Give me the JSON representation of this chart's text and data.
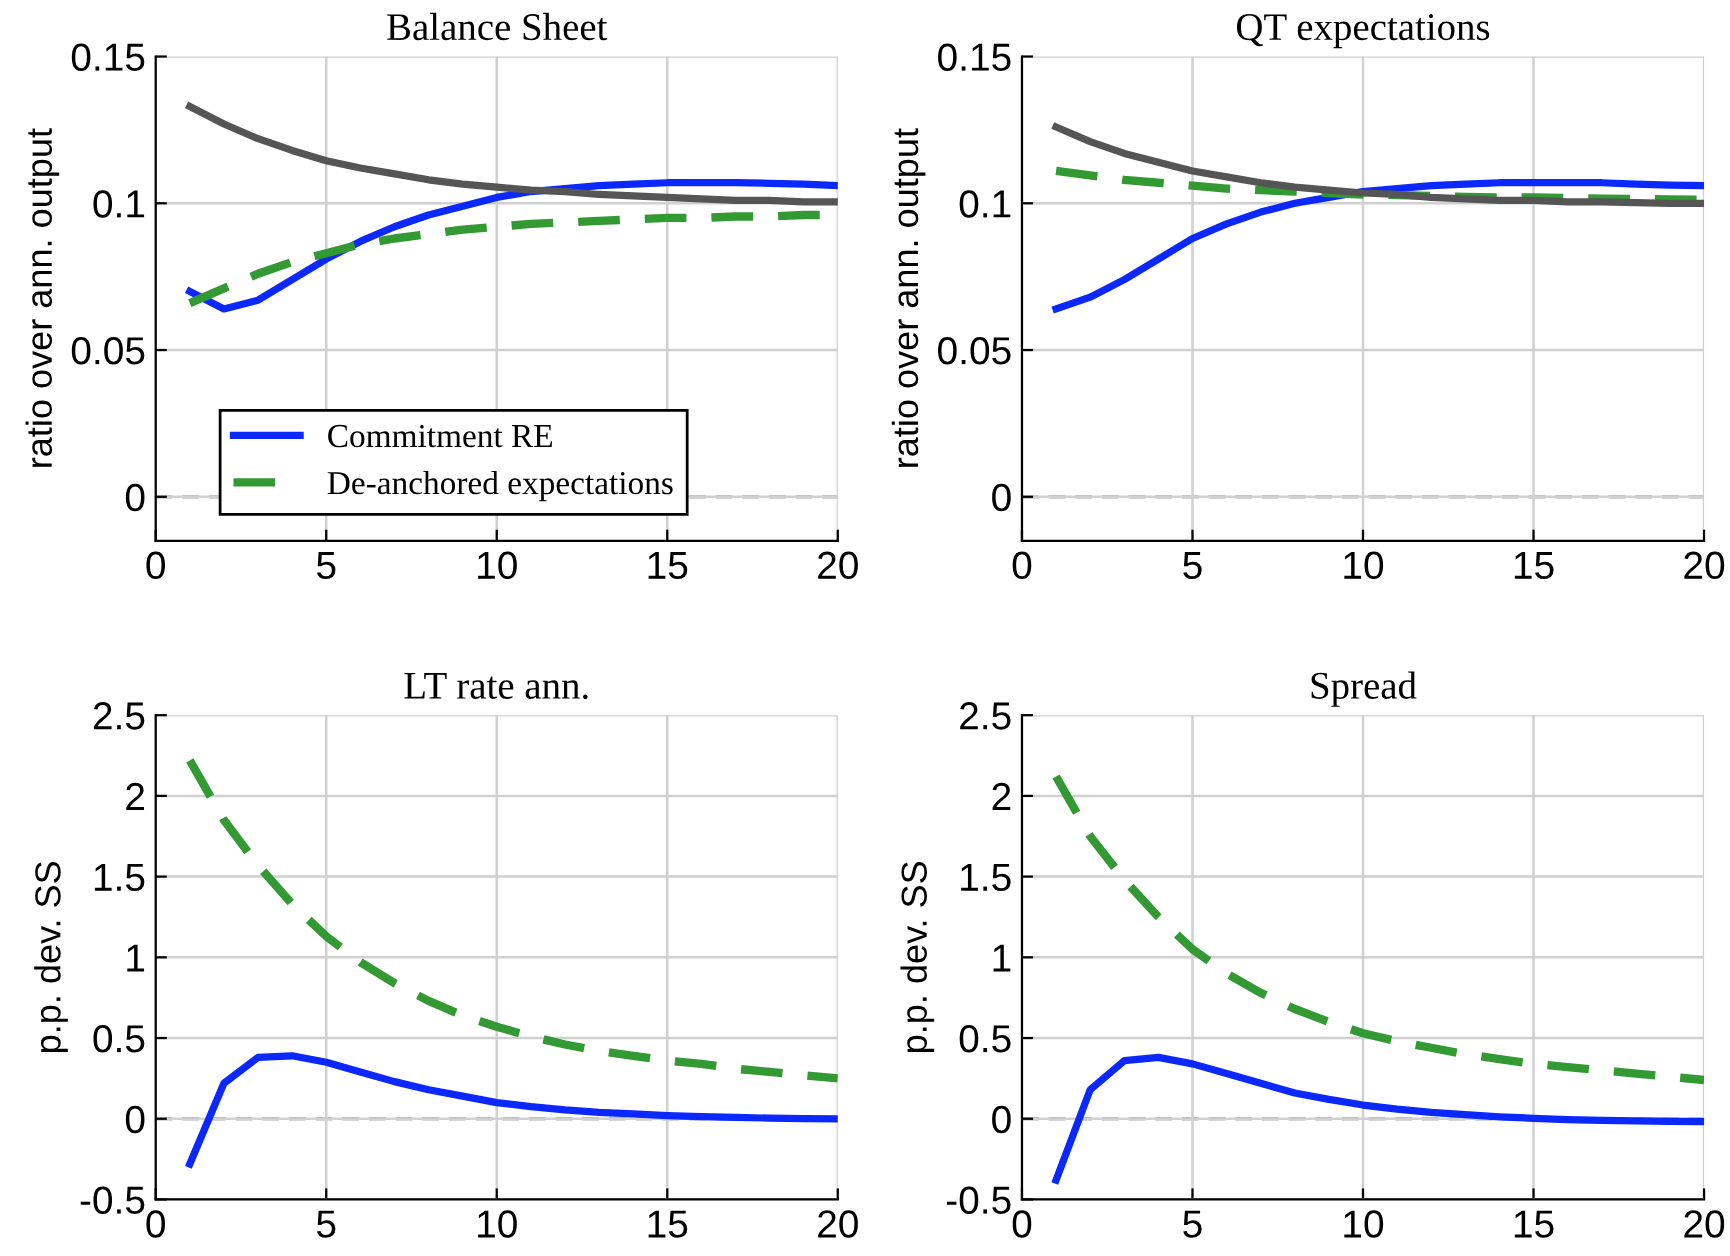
{
  "chart_data": [
    {
      "type": "line",
      "title": "Balance Sheet",
      "ylabel": "ratio over ann. output",
      "x": [
        1,
        2,
        3,
        4,
        5,
        6,
        7,
        8,
        9,
        10,
        11,
        12,
        13,
        14,
        15,
        16,
        17,
        18,
        19,
        20
      ],
      "xlim": [
        0,
        20
      ],
      "xticks": [
        0,
        5,
        10,
        15,
        20
      ],
      "ylim": [
        -0.015,
        0.15
      ],
      "yticks": [
        0,
        0.05,
        0.1,
        0.15
      ],
      "grid": true,
      "legend": "bottom left",
      "ref_lines": [
        {
          "axis": "y",
          "value": 0,
          "color": "#aaaaaa",
          "line_style": "dashed"
        }
      ],
      "series": [
        {
          "name": "Commitment RE",
          "color": "#0a28ff",
          "line_style": "solid",
          "values": [
            0.07,
            0.064,
            0.067,
            0.074,
            0.081,
            0.087,
            0.092,
            0.096,
            0.099,
            0.102,
            0.104,
            0.105,
            0.106,
            0.1065,
            0.107,
            0.107,
            0.107,
            0.1068,
            0.1065,
            0.106
          ]
        },
        {
          "name": "De-anchored expectations",
          "color": "#339933",
          "line_style": "dashed",
          "values": [
            0.066,
            0.071,
            0.076,
            0.08,
            0.083,
            0.086,
            0.088,
            0.0895,
            0.091,
            0.092,
            0.093,
            0.0935,
            0.094,
            0.0945,
            0.095,
            0.095,
            0.0955,
            0.0955,
            0.096,
            0.096
          ]
        },
        {
          "color": "#555555",
          "line_style": "solid",
          "values": [
            0.133,
            0.127,
            0.122,
            0.118,
            0.1145,
            0.112,
            0.11,
            0.108,
            0.1065,
            0.1055,
            0.1045,
            0.104,
            0.103,
            0.1025,
            0.102,
            0.1015,
            0.101,
            0.101,
            0.1005,
            0.1005
          ]
        }
      ]
    },
    {
      "type": "line",
      "title": "QT expectations",
      "ylabel": "ratio over ann. output",
      "x": [
        1,
        2,
        3,
        4,
        5,
        6,
        7,
        8,
        9,
        10,
        11,
        12,
        13,
        14,
        15,
        16,
        17,
        18,
        19,
        20
      ],
      "xlim": [
        0,
        20
      ],
      "xticks": [
        0,
        5,
        10,
        15,
        20
      ],
      "ylim": [
        -0.015,
        0.15
      ],
      "yticks": [
        0,
        0.05,
        0.1,
        0.15
      ],
      "grid": true,
      "ref_lines": [
        {
          "axis": "y",
          "value": 0,
          "color": "#aaaaaa",
          "line_style": "dashed"
        }
      ],
      "series": [
        {
          "color": "#0a28ff",
          "line_style": "solid",
          "values": [
            0.064,
            0.068,
            0.074,
            0.081,
            0.088,
            0.093,
            0.097,
            0.1,
            0.102,
            0.104,
            0.105,
            0.106,
            0.1065,
            0.107,
            0.107,
            0.107,
            0.107,
            0.1065,
            0.1062,
            0.106
          ]
        },
        {
          "color": "#339933",
          "line_style": "dashed",
          "values": [
            0.111,
            0.1095,
            0.108,
            0.107,
            0.106,
            0.105,
            0.1045,
            0.104,
            0.1035,
            0.103,
            0.1028,
            0.1025,
            0.1022,
            0.102,
            0.102,
            0.1018,
            0.1016,
            0.1015,
            0.1013,
            0.1012
          ]
        },
        {
          "color": "#555555",
          "line_style": "solid",
          "values": [
            0.126,
            0.121,
            0.117,
            0.114,
            0.111,
            0.109,
            0.107,
            0.1055,
            0.1045,
            0.1035,
            0.103,
            0.102,
            0.1015,
            0.101,
            0.101,
            0.1005,
            0.1005,
            0.1002,
            0.1,
            0.1
          ]
        }
      ]
    },
    {
      "type": "line",
      "title": "LT rate ann.",
      "ylabel": "p.p. dev. SS",
      "x": [
        1,
        2,
        3,
        4,
        5,
        6,
        7,
        8,
        9,
        10,
        11,
        12,
        13,
        14,
        15,
        16,
        17,
        18,
        19,
        20
      ],
      "xlim": [
        0,
        20
      ],
      "xticks": [
        0,
        5,
        10,
        15,
        20
      ],
      "ylim": [
        -0.5,
        2.5
      ],
      "yticks": [
        -0.5,
        0,
        0.5,
        1,
        1.5,
        2,
        2.5
      ],
      "grid": true,
      "ref_lines": [
        {
          "axis": "y",
          "value": 0,
          "color": "#aaaaaa",
          "line_style": "dashed"
        }
      ],
      "series": [
        {
          "color": "#0a28ff",
          "line_style": "solid",
          "values": [
            -0.28,
            0.22,
            0.38,
            0.39,
            0.35,
            0.29,
            0.23,
            0.18,
            0.14,
            0.1,
            0.075,
            0.055,
            0.04,
            0.03,
            0.02,
            0.013,
            0.008,
            0.004,
            0.001,
            -0.001
          ]
        },
        {
          "color": "#339933",
          "line_style": "dashed",
          "values": [
            2.22,
            1.85,
            1.57,
            1.33,
            1.13,
            0.97,
            0.84,
            0.73,
            0.64,
            0.57,
            0.51,
            0.46,
            0.42,
            0.39,
            0.36,
            0.34,
            0.31,
            0.29,
            0.27,
            0.25
          ]
        }
      ]
    },
    {
      "type": "line",
      "title": "Spread",
      "ylabel": "p.p. dev. SS",
      "x": [
        1,
        2,
        3,
        4,
        5,
        6,
        7,
        8,
        9,
        10,
        11,
        12,
        13,
        14,
        15,
        16,
        17,
        18,
        19,
        20
      ],
      "xlim": [
        0,
        20
      ],
      "xticks": [
        0,
        5,
        10,
        15,
        20
      ],
      "ylim": [
        -0.5,
        2.5
      ],
      "yticks": [
        -0.5,
        0,
        0.5,
        1,
        1.5,
        2,
        2.5
      ],
      "grid": true,
      "ref_lines": [
        {
          "axis": "y",
          "value": 0,
          "color": "#aaaaaa",
          "line_style": "dashed"
        }
      ],
      "series": [
        {
          "color": "#0a28ff",
          "line_style": "solid",
          "values": [
            -0.38,
            0.18,
            0.36,
            0.38,
            0.34,
            0.28,
            0.22,
            0.16,
            0.12,
            0.085,
            0.06,
            0.04,
            0.025,
            0.012,
            0.003,
            -0.005,
            -0.01,
            -0.013,
            -0.016,
            -0.018
          ]
        },
        {
          "color": "#339933",
          "line_style": "dashed",
          "values": [
            2.12,
            1.75,
            1.48,
            1.25,
            1.05,
            0.9,
            0.78,
            0.68,
            0.6,
            0.53,
            0.48,
            0.44,
            0.4,
            0.37,
            0.34,
            0.32,
            0.3,
            0.28,
            0.26,
            0.24
          ]
        }
      ]
    }
  ]
}
